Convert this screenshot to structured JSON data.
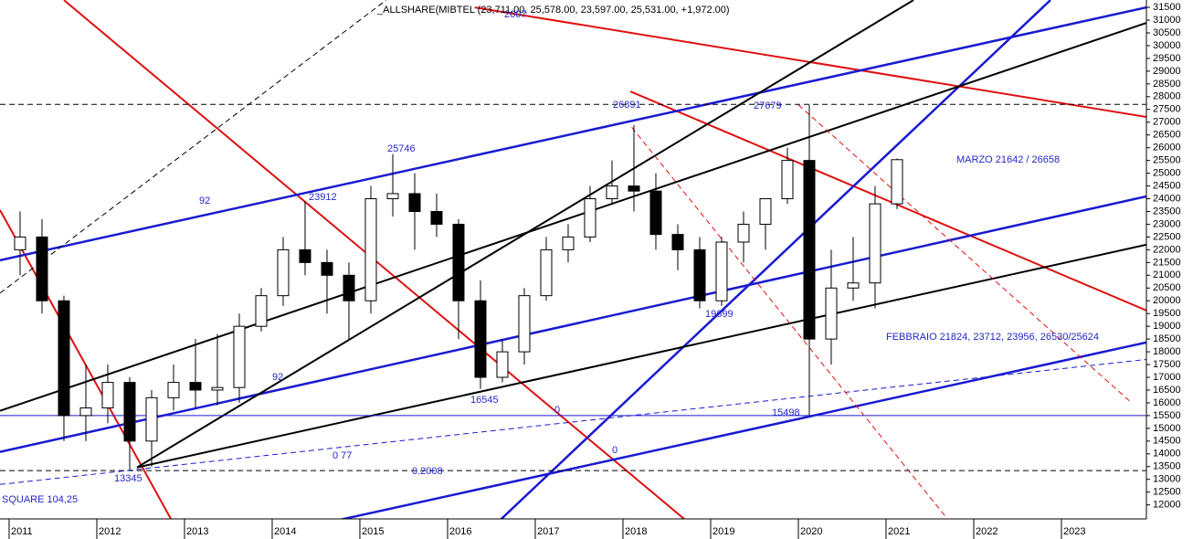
{
  "chart_data": {
    "type": "candlestick",
    "title": "_ALLSHARE(MIBTEL (23,711.00, 25,578.00, 23,597.00, 25,531.00, +1,972.00)",
    "xlim": [
      2010.896,
      2023.969
    ],
    "ylim": [
      11450,
      31790
    ],
    "xticks": [
      2011,
      2012,
      2013,
      2014,
      2015,
      2016,
      2017,
      2018,
      2019,
      2020,
      2021,
      2022,
      2023
    ],
    "yticks": [
      12000,
      12500,
      13000,
      13500,
      14000,
      14500,
      15000,
      15500,
      16000,
      16500,
      17000,
      17500,
      18000,
      18500,
      19000,
      19500,
      20000,
      20500,
      21000,
      21500,
      22000,
      22500,
      23000,
      23500,
      24000,
      24500,
      25000,
      25500,
      26000,
      26500,
      27000,
      27500,
      28000,
      28500,
      29000,
      29500,
      30000,
      30500,
      31000,
      31500
    ],
    "up_color": "#ffffff",
    "down_color": "#000000",
    "x": [
      2011.125,
      2011.375,
      2011.625,
      2011.875,
      2012.125,
      2012.375,
      2012.625,
      2012.875,
      2013.125,
      2013.375,
      2013.625,
      2013.875,
      2014.125,
      2014.375,
      2014.625,
      2014.875,
      2015.125,
      2015.375,
      2015.625,
      2015.875,
      2016.125,
      2016.375,
      2016.625,
      2016.875,
      2017.125,
      2017.375,
      2017.625,
      2017.875,
      2018.125,
      2018.375,
      2018.625,
      2018.875,
      2019.125,
      2019.375,
      2019.625,
      2019.875,
      2020.125,
      2020.375,
      2020.625,
      2020.875,
      2021.125
    ],
    "open": [
      22000,
      22500,
      20000,
      15500,
      15800,
      16800,
      14500,
      16200,
      16800,
      16500,
      16600,
      19000,
      20200,
      22000,
      21500,
      21000,
      20000,
      24000,
      24200,
      23500,
      23000,
      20000,
      17000,
      18000,
      20200,
      22000,
      22500,
      24000,
      24500,
      24300,
      22600,
      22000,
      20000,
      22300,
      23000,
      24000,
      25500,
      18500,
      20500,
      20700,
      23800
    ],
    "high": [
      23500,
      23200,
      20200,
      17500,
      17500,
      17000,
      16500,
      17500,
      18500,
      18700,
      19500,
      20500,
      22500,
      23912,
      22000,
      21500,
      24500,
      25746,
      25000,
      24200,
      23200,
      20800,
      18500,
      20500,
      22500,
      23000,
      24500,
      25500,
      26891,
      25000,
      23000,
      22500,
      22500,
      23500,
      24000,
      26000,
      27679,
      22000,
      22500,
      24500,
      25578
    ],
    "low": [
      21000,
      19500,
      14500,
      14500,
      15200,
      13345,
      13500,
      15700,
      15800,
      15900,
      16000,
      18800,
      19800,
      21000,
      19500,
      18500,
      19500,
      23300,
      22000,
      22500,
      18500,
      16545,
      16800,
      17500,
      20000,
      21500,
      22300,
      23800,
      23500,
      22000,
      21200,
      19699,
      19800,
      21500,
      22000,
      23800,
      15498,
      17500,
      20000,
      19700,
      23597
    ],
    "close": [
      22500,
      20000,
      15500,
      15800,
      16800,
      14500,
      16200,
      16800,
      16500,
      16600,
      19000,
      20200,
      22000,
      21500,
      21000,
      20000,
      24000,
      24200,
      23500,
      23000,
      20000,
      17000,
      18000,
      20200,
      22000,
      22500,
      24000,
      24500,
      24300,
      22600,
      22000,
      20000,
      22300,
      23000,
      24000,
      25500,
      18500,
      20500,
      20700,
      23800,
      25531
    ],
    "trendlines": [
      {
        "color": "#e01010",
        "width": 2,
        "style": "solid",
        "x": [
          2011.625,
          2018.854
        ],
        "y": [
          31786,
          11000
        ]
      },
      {
        "color": "#e01010",
        "width": 2,
        "style": "solid",
        "x": [
          2010.896,
          2012.854
        ],
        "y": [
          23557,
          11392
        ]
      },
      {
        "color": "#e01010",
        "width": 2,
        "style": "solid",
        "x": [
          2016.31,
          2023.969
        ],
        "y": [
          31500,
          27207
        ]
      },
      {
        "color": "#e01010",
        "width": 2,
        "style": "solid",
        "x": [
          2018.083,
          2023.969
        ],
        "y": [
          28208,
          19621
        ]
      },
      {
        "color": "#1a1ad0",
        "width": 2.5,
        "style": "solid",
        "x": [
          2010.896,
          2023.969
        ],
        "y": [
          21589,
          31500
        ]
      },
      {
        "color": "#1a1ad0",
        "width": 2.5,
        "style": "solid",
        "x": [
          2010.896,
          2023.969
        ],
        "y": [
          14075,
          24093
        ]
      },
      {
        "color": "#1a1ad0",
        "width": 2.5,
        "style": "solid",
        "x": [
          2014.646,
          2023.969
        ],
        "y": [
          11320,
          18369
        ]
      },
      {
        "color": "#1a1ad0",
        "width": 2.5,
        "style": "solid",
        "x": [
          2016.573,
          2022.875
        ],
        "y": [
          11320,
          31786
        ]
      },
      {
        "color": "#000000",
        "width": 2,
        "style": "solid",
        "x": [
          2010.896,
          2023.969
        ],
        "y": [
          15685,
          30892
        ]
      },
      {
        "color": "#000000",
        "width": 2,
        "style": "solid",
        "x": [
          2012.458,
          2021.313
        ],
        "y": [
          13467,
          31786
        ]
      },
      {
        "color": "#000000",
        "width": 2,
        "style": "solid",
        "x": [
          2012.458,
          2023.969
        ],
        "y": [
          13467,
          22197
        ]
      },
      {
        "color": "#1a1ad0",
        "width": 1,
        "style": "solid",
        "x": [
          2010.896,
          2023.969
        ],
        "y": [
          15500,
          15500
        ]
      },
      {
        "color": "#000000",
        "width": 1,
        "style": "dashed",
        "x": [
          2010.896,
          2023.969
        ],
        "y": [
          27700,
          27700
        ]
      },
      {
        "color": "#000000",
        "width": 1,
        "style": "dashed",
        "x": [
          2010.896,
          2023.969
        ],
        "y": [
          13345,
          13345
        ]
      },
      {
        "color": "#1a1ad0",
        "width": 1,
        "style": "dashed",
        "x": [
          2010.896,
          2023.969
        ],
        "y": [
          12800,
          17700
        ]
      },
      {
        "color": "#e01010",
        "width": 1,
        "style": "dashed",
        "x": [
          2018.1,
          2021.7
        ],
        "y": [
          26800,
          11450
        ]
      },
      {
        "color": "#e01010",
        "width": 1,
        "style": "dashed",
        "x": [
          2020.0,
          2023.8
        ],
        "y": [
          27679,
          16000
        ]
      },
      {
        "color": "#000000",
        "width": 1,
        "style": "dashed",
        "x": [
          2010.896,
          2015.3
        ],
        "y": [
          20300,
          31786
        ]
      }
    ],
    "annotations": [
      "2007",
      "26891",
      "27679",
      "25746",
      "23912",
      "92",
      "MARZO 21642 / 26658",
      "19699",
      "16545",
      "0",
      "15498",
      "FEBBRAIO 21824, 23712,   23956, 26530/25624",
      "92",
      "0 77",
      "0",
      "0.2008",
      "13345",
      "SQUARE 104,25"
    ]
  }
}
